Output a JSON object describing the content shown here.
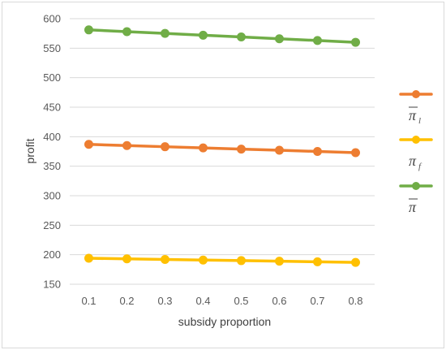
{
  "chart_data": {
    "type": "line",
    "title": "",
    "xlabel": "subsidy proportion",
    "ylabel": "profit",
    "x": [
      "0.1",
      "0.2",
      "0.3",
      "0.4",
      "0.5",
      "0.6",
      "0.7",
      "0.8"
    ],
    "ylim": [
      150,
      600
    ],
    "yticks": [
      "150",
      "200",
      "250",
      "300",
      "350",
      "400",
      "450",
      "500",
      "550",
      "600"
    ],
    "grid": true,
    "legend_position": "right",
    "series": [
      {
        "name": "π_l",
        "symbol": "π",
        "subscript": "l",
        "overbar": true,
        "color": "#ED7D31",
        "values": [
          387,
          385,
          383,
          381,
          379,
          377,
          375,
          373
        ]
      },
      {
        "name": "π_f",
        "symbol": "π",
        "subscript": "f",
        "overbar": false,
        "color": "#FFC000",
        "values": [
          194,
          193,
          192,
          191,
          190,
          189,
          188,
          187
        ]
      },
      {
        "name": "π",
        "symbol": "π",
        "subscript": "",
        "overbar": true,
        "color": "#70AD47",
        "values": [
          581,
          578,
          575,
          572,
          569,
          566,
          563,
          560
        ]
      }
    ]
  }
}
